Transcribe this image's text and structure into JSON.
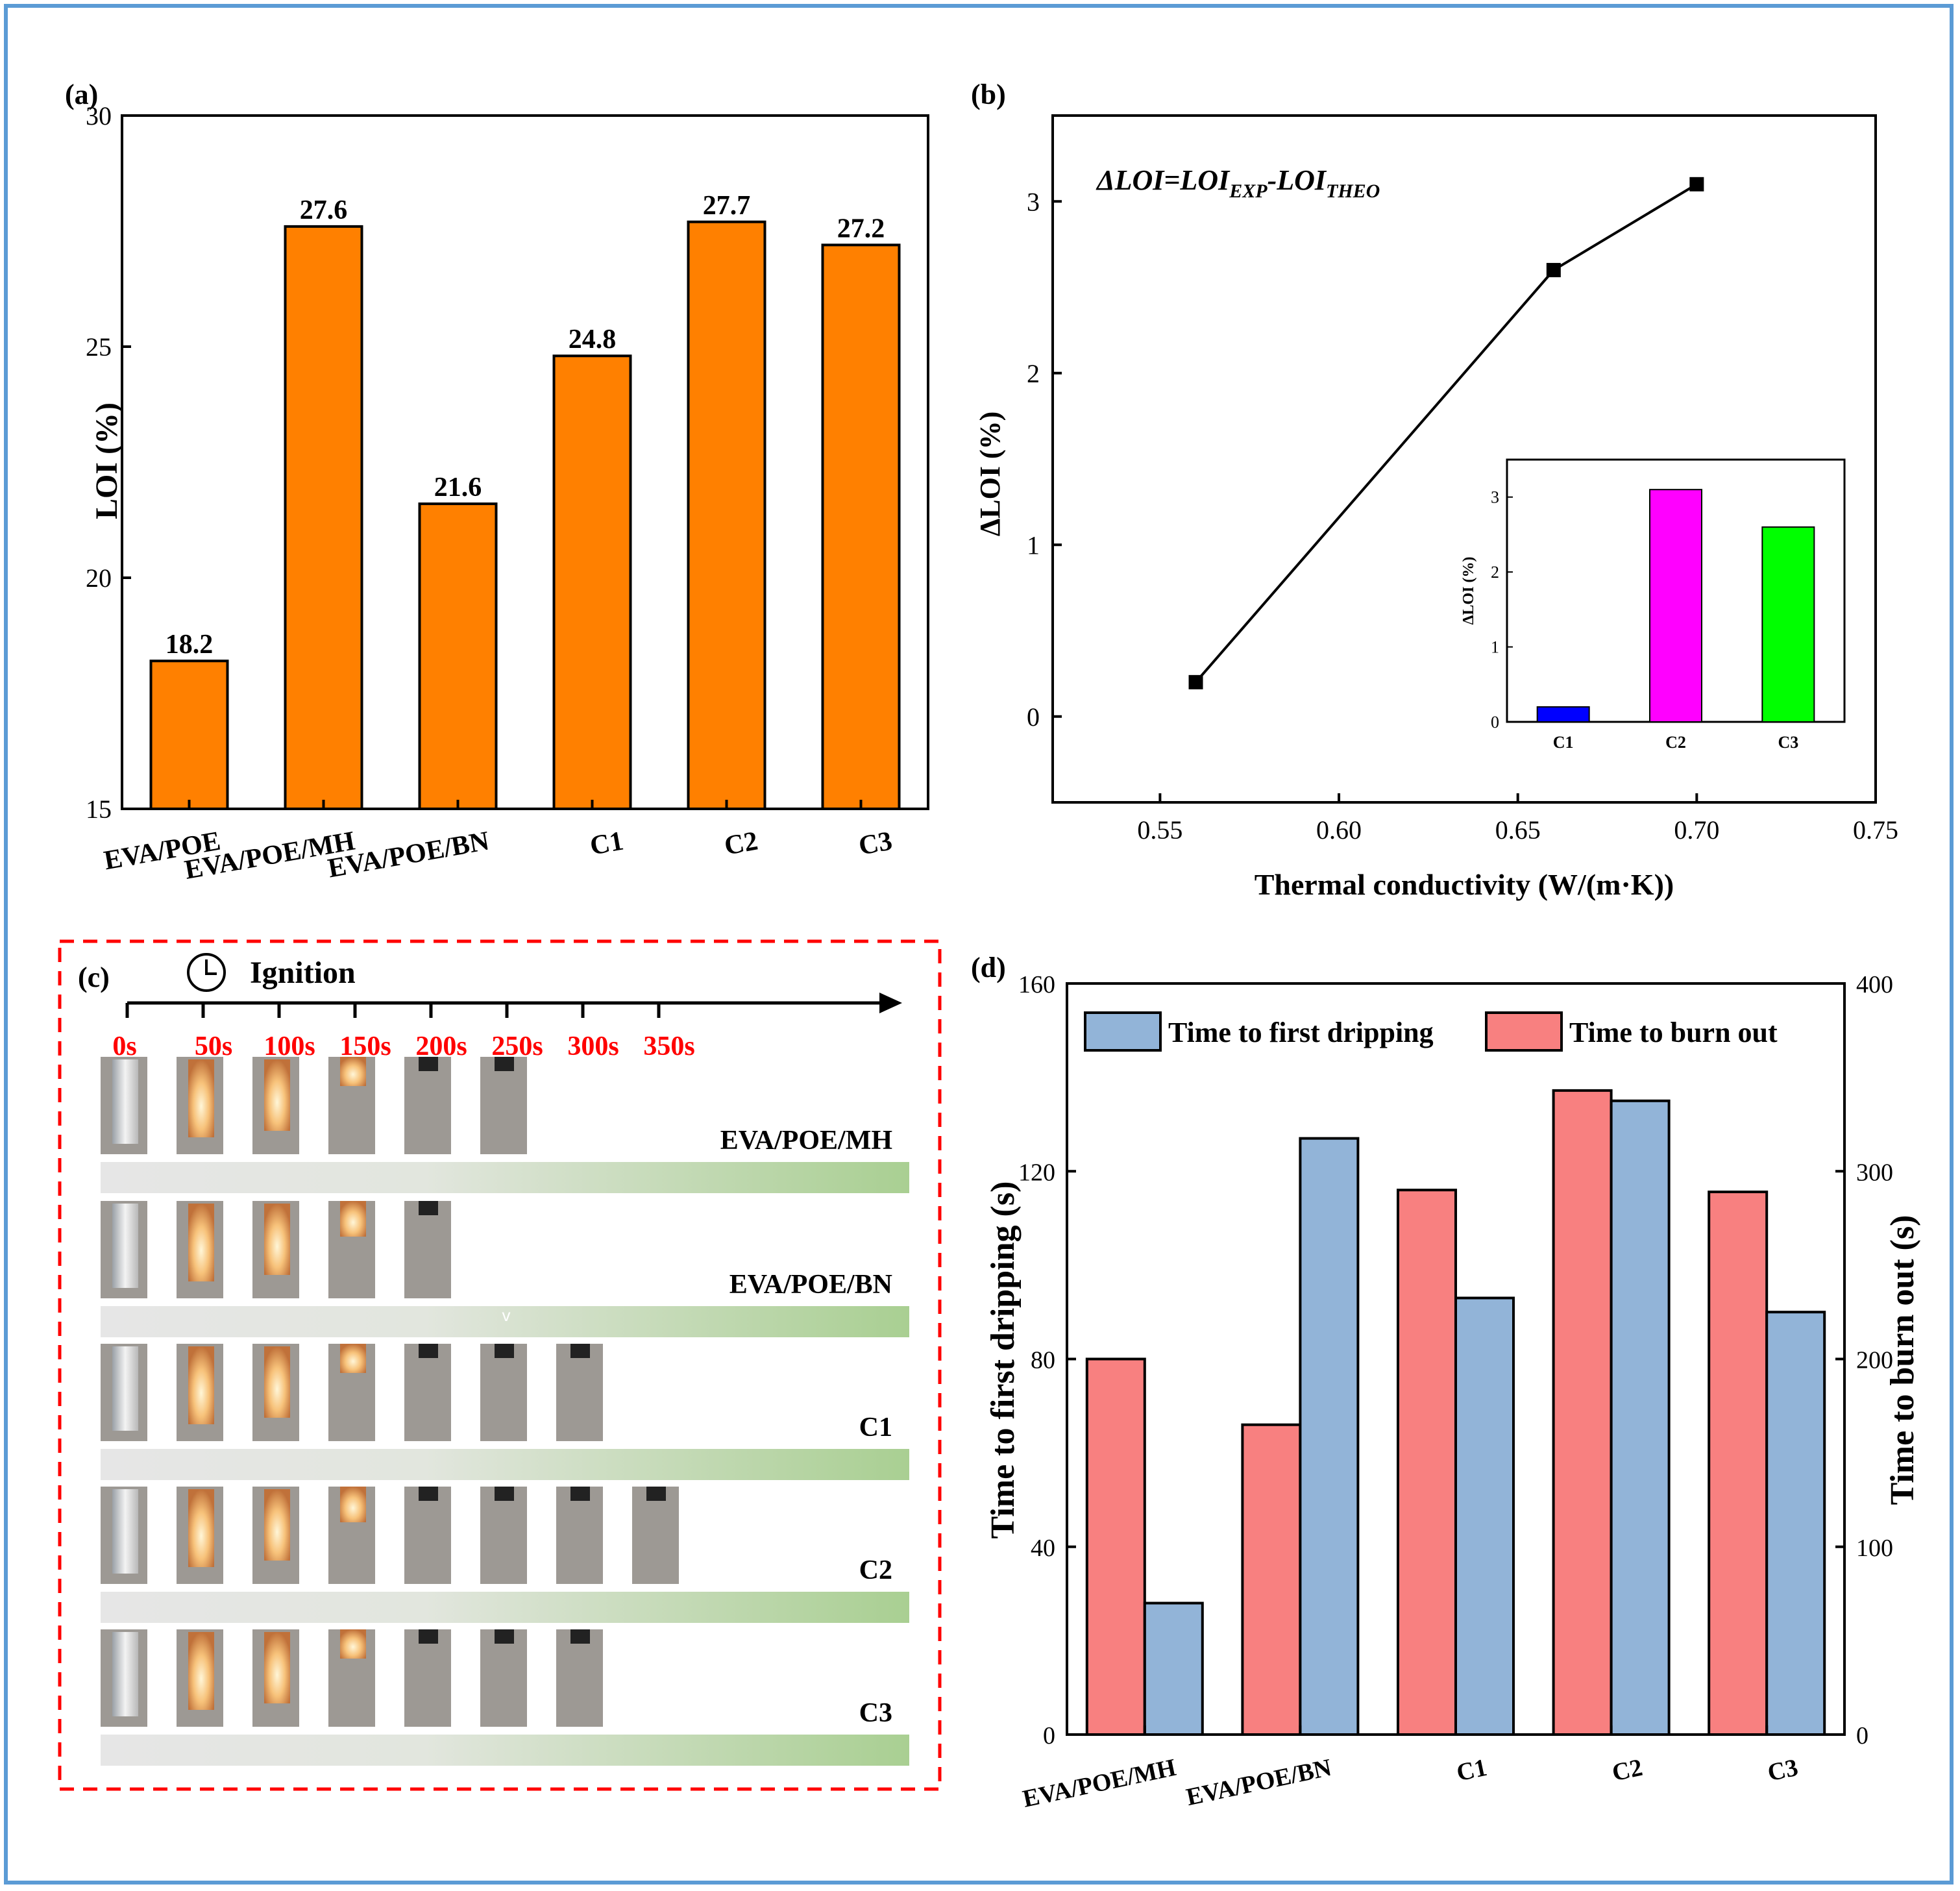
{
  "colors": {
    "orange": "#ff8000",
    "line": "#000000",
    "blue_bar": "#0000ff",
    "magenta_bar": "#ff00ff",
    "green_bar": "#00ff00",
    "drip_blue": "#92b4d8",
    "burn_red": "#f88080",
    "time_red": "#ff0000",
    "dash_red": "#ff0000",
    "frame_blue": "#5b9bd5"
  },
  "chart_data": [
    {
      "panel": "(a)",
      "type": "bar",
      "categories": [
        "EVA/POE",
        "EVA/POE/MH",
        "EVA/POE/BN",
        "C1",
        "C2",
        "C3"
      ],
      "values": [
        18.2,
        27.6,
        21.6,
        24.8,
        27.7,
        27.2
      ],
      "value_labels": [
        "18.2",
        "27.6",
        "21.6",
        "24.8",
        "27.7",
        "27.2"
      ],
      "ylabel": "LOI (%)",
      "ylim": [
        15,
        30
      ],
      "yticks": [
        "15",
        "20",
        "25",
        "30"
      ],
      "ytick_values": [
        15,
        20,
        25,
        30
      ]
    },
    {
      "panel": "(b)",
      "type": "line",
      "x": [
        0.56,
        0.66,
        0.7
      ],
      "y": [
        0.2,
        2.6,
        3.1
      ],
      "formula": {
        "a": "ΔLOI=LOI",
        "b": "EXP",
        "c": "-LOI",
        "d": "THEO"
      },
      "xlabel": "Thermal conductivity (W/(m·K))",
      "ylabel": "ΔLOI (%)",
      "xlim": [
        0.52,
        0.75
      ],
      "ylim": [
        -0.5,
        3.5
      ],
      "xticks": [
        "0.55",
        "0.60",
        "0.65",
        "0.70",
        "0.75"
      ],
      "xtick_values": [
        0.55,
        0.6,
        0.65,
        0.7,
        0.75
      ],
      "yticks": [
        "0",
        "1",
        "2",
        "3"
      ],
      "ytick_values": [
        0,
        1,
        2,
        3
      ],
      "inset": {
        "type": "bar",
        "categories": [
          "C1",
          "C2",
          "C3"
        ],
        "values": [
          0.2,
          3.1,
          2.6
        ],
        "ylabel": "ΔLOI (%)",
        "ylim": [
          0,
          3.5
        ],
        "yticks": [
          "0",
          "1",
          "2",
          "3"
        ],
        "ytick_values": [
          0,
          1,
          2,
          3
        ]
      }
    },
    {
      "panel": "(d)",
      "type": "bar",
      "categories": [
        "EVA/POE/MH",
        "EVA/POE/BN",
        "C1",
        "C2",
        "C3"
      ],
      "series": [
        {
          "name": "Time to first dripping",
          "axis": "left",
          "values": [
            28,
            127,
            93,
            135,
            90
          ]
        },
        {
          "name": "Time to burn out",
          "axis": "right",
          "values": [
            200,
            165,
            290,
            343,
            289
          ]
        }
      ],
      "ylabel_left": "Time to first dripping (s)",
      "ylabel_right": "Time to burn out (s)",
      "ylim_left": [
        0,
        160
      ],
      "ylim_right": [
        0,
        400
      ],
      "yticks_left": [
        "0",
        "40",
        "80",
        "120",
        "160"
      ],
      "ytick_values_left": [
        0,
        40,
        80,
        120,
        160
      ],
      "yticks_right": [
        "0",
        "100",
        "200",
        "300",
        "400"
      ],
      "ytick_values_right": [
        0,
        100,
        200,
        300,
        400
      ],
      "legend_position": "top"
    }
  ],
  "panel_c": {
    "label": "(c)",
    "ignition": "Ignition",
    "times": [
      "0s",
      "50s",
      "100s",
      "150s",
      "200s",
      "250s",
      "300s",
      "350s"
    ],
    "rows": [
      {
        "name": "EVA/POE/MH",
        "frames": 6
      },
      {
        "name": "EVA/POE/BN",
        "frames": 5
      },
      {
        "name": "C1",
        "frames": 7
      },
      {
        "name": "C2",
        "frames": 8
      },
      {
        "name": "C3",
        "frames": 7
      }
    ],
    "mark": "v"
  }
}
